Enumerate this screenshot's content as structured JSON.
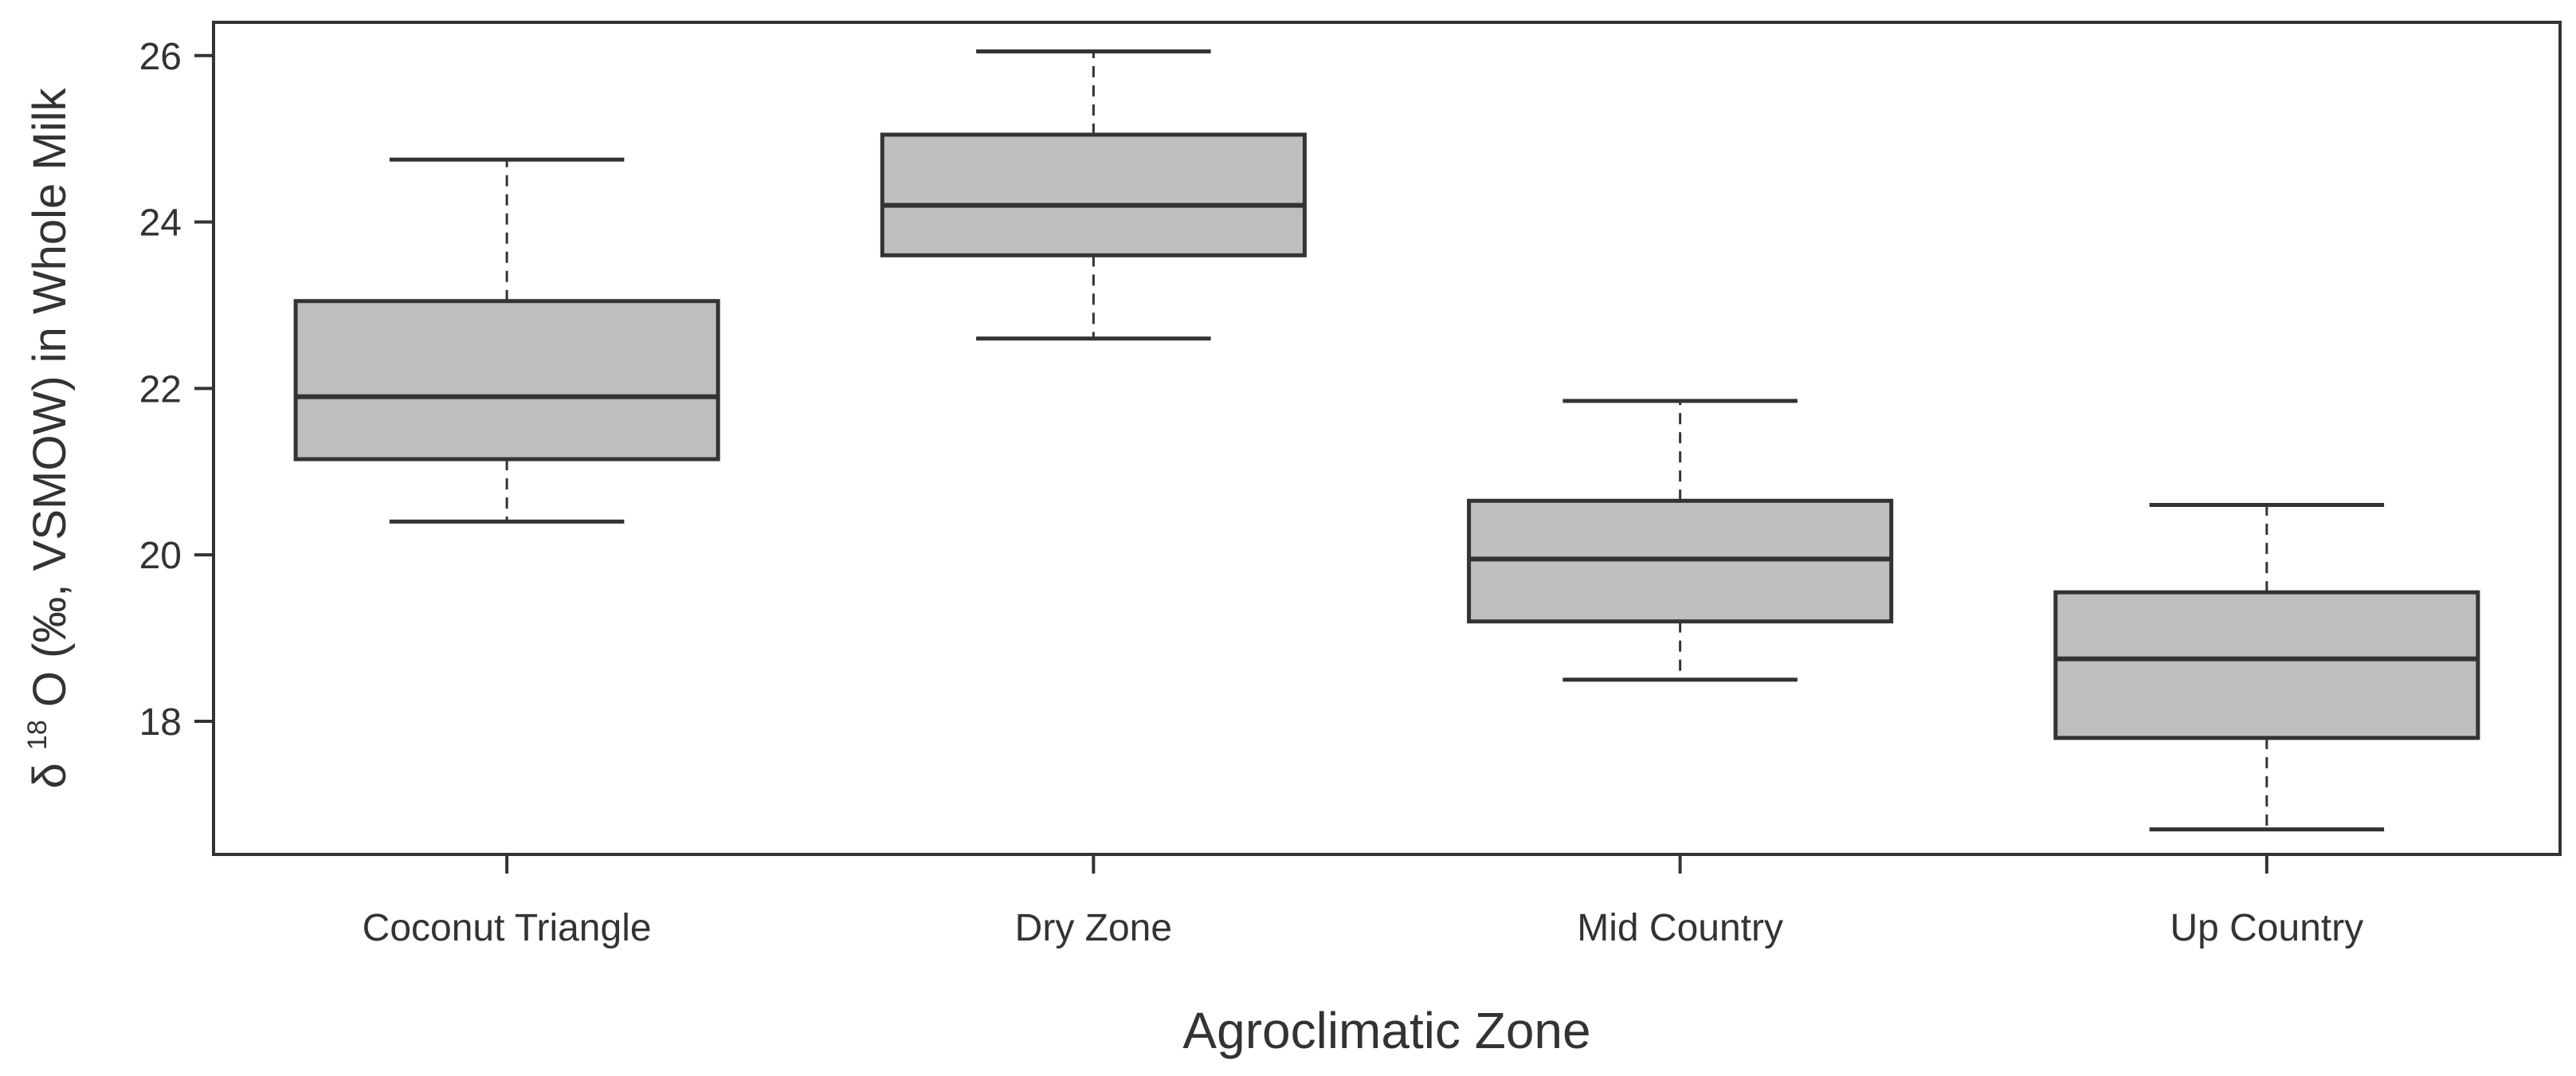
{
  "chart_data": {
    "type": "box",
    "xlabel": "Agroclimatic Zone",
    "ylabel": {
      "prefix": "δ",
      "superscript": "18",
      "suffix": "O (‰, VSMOW) in Whole Milk"
    },
    "ylim": [
      16.4,
      26.4
    ],
    "yticks": [
      18,
      20,
      22,
      24,
      26
    ],
    "grid": false,
    "legend": "none",
    "box_fill": "#bebebe",
    "line_color": "#333333",
    "categories": [
      "Coconut Triangle",
      "Dry Zone",
      "Mid Country",
      "Up Country"
    ],
    "boxes": [
      {
        "category": "Coconut Triangle",
        "min": 20.4,
        "q1": 21.15,
        "median": 21.9,
        "q3": 23.05,
        "max": 24.75
      },
      {
        "category": "Dry Zone",
        "min": 22.6,
        "q1": 23.6,
        "median": 24.2,
        "q3": 25.05,
        "max": 26.05
      },
      {
        "category": "Mid Country",
        "min": 18.5,
        "q1": 19.2,
        "median": 19.95,
        "q3": 20.65,
        "max": 21.85
      },
      {
        "category": "Up Country",
        "min": 16.7,
        "q1": 17.8,
        "median": 18.75,
        "q3": 19.55,
        "max": 20.6
      }
    ]
  }
}
